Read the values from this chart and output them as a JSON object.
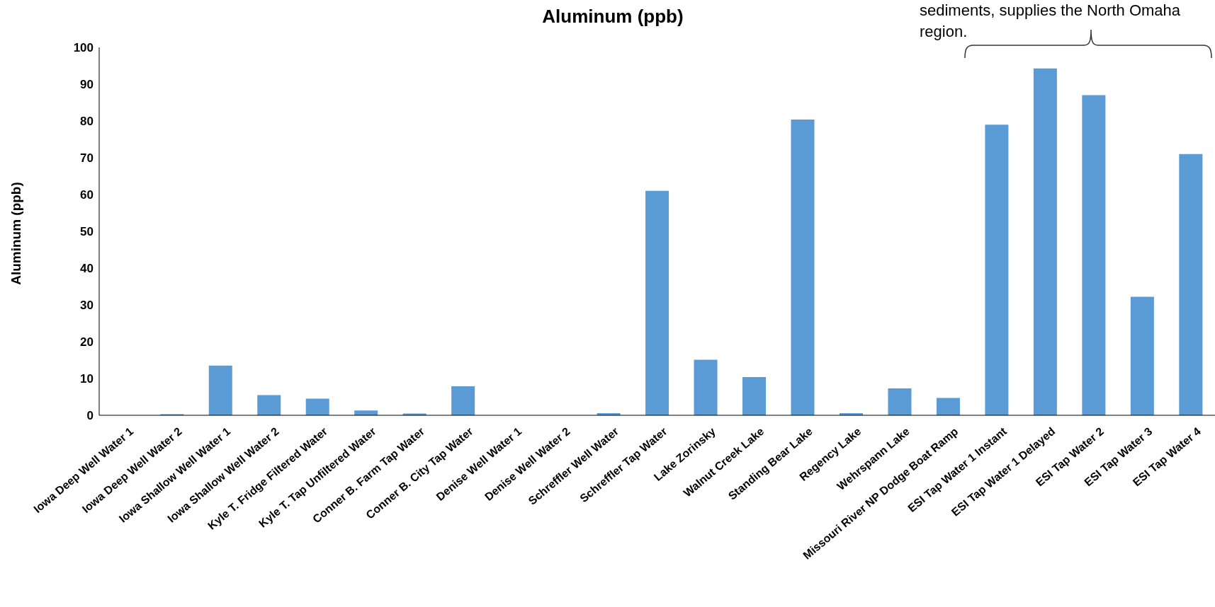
{
  "chart_data": {
    "type": "bar",
    "title": "Aluminum (ppb)",
    "ylabel": "Aluminum (ppb)",
    "categories": [
      "Iowa Deep Well  Water 1",
      "Iowa Deep Well Water 2",
      "Iowa Shallow Well Water 1",
      "Iowa Shallow Well Water 2",
      "Kyle T. Fridge Filtered Water",
      "Kyle T. Tap Unfiltered Water",
      "Conner B. Farm Tap Water",
      "Conner B. City Tap  Water",
      "Denise Well Water 1",
      "Denise Well Water 2",
      "Schreffler Well Water",
      "Schreffler Tap Water",
      "Lake Zorinsky",
      "Walnut Creek Lake",
      "Standing Bear Lake",
      "Regency Lake",
      "Wehrspann Lake",
      "Missouri River NP Dodge Boat Ramp",
      "ESI Tap Water 1 Instant",
      "ESI Tap Water 1 Delayed",
      "ESI Tap Water 2",
      "ESI Tap Water 3",
      "ESI Tap Water 4"
    ],
    "values": [
      0,
      0.3,
      13.5,
      5.5,
      4.5,
      1.3,
      0.5,
      7.9,
      0,
      0,
      0.6,
      61,
      15.1,
      10.4,
      80.4,
      0.6,
      7.3,
      4.7,
      79,
      94.3,
      87,
      32.2,
      71
    ],
    "color": "#5b9bd5",
    "ylim": [
      0,
      100
    ],
    "yticks": [
      0,
      10,
      20,
      30,
      40,
      50,
      60,
      70,
      80,
      90,
      100
    ],
    "grid": false,
    "legend": false,
    "annotations": [
      "sediments, supplies the North Omaha region."
    ]
  }
}
